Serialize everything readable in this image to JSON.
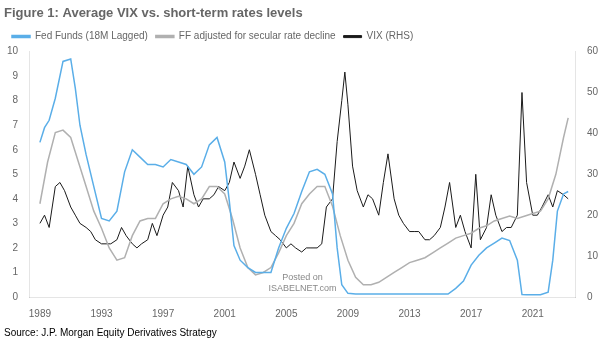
{
  "chart_data": {
    "type": "line",
    "title": "Figure 1: Average VIX vs. short-term rates levels",
    "subtitle": "Source: J.P. Morgan Equity Derivatives Strategy",
    "annotations": [
      "Posted on",
      "ISABELNET.com"
    ],
    "legend": "top",
    "grid": false,
    "xlim": [
      1988.3,
      2023.8
    ],
    "xticks": [
      1989,
      1993,
      1997,
      2001,
      2005,
      2009,
      2013,
      2017,
      2021
    ],
    "ylim": [
      0,
      10
    ],
    "yticks": [
      0,
      1,
      2,
      3,
      4,
      5,
      6,
      7,
      8,
      9,
      10
    ],
    "y2lim": [
      0,
      60
    ],
    "y2ticks": [
      0,
      10,
      20,
      30,
      40,
      50,
      60
    ],
    "series": [
      {
        "name": "Fed Funds (18M Lagged)",
        "color": "#5aaee8",
        "x": [
          1989.0,
          1989.3,
          1989.6,
          1990.0,
          1990.5,
          1991.0,
          1991.3,
          1991.6,
          1992.0,
          1992.5,
          1993.0,
          1993.5,
          1994.0,
          1994.5,
          1995.0,
          1995.5,
          1996.0,
          1996.5,
          1997.0,
          1997.5,
          1998.0,
          1998.5,
          1999.0,
          1999.5,
          2000.0,
          2000.5,
          2001.0,
          2001.3,
          2001.6,
          2002.0,
          2002.5,
          2003.0,
          2003.5,
          2004.0,
          2004.5,
          2005.0,
          2005.5,
          2006.0,
          2006.5,
          2007.0,
          2007.5,
          2008.0,
          2008.3,
          2008.6,
          2009.0,
          2009.5,
          2010.0,
          2010.5,
          2011.0,
          2011.5,
          2012.0,
          2012.5,
          2013.0,
          2013.5,
          2014.0,
          2014.5,
          2015.0,
          2015.5,
          2016.0,
          2016.5,
          2017.0,
          2017.5,
          2018.0,
          2018.5,
          2019.0,
          2019.5,
          2020.0,
          2020.3,
          2020.6,
          2021.0,
          2021.5,
          2022.0,
          2022.3,
          2022.6,
          2023.0,
          2023.3
        ],
        "values": [
          6.3,
          6.9,
          7.2,
          8.1,
          9.6,
          9.7,
          8.5,
          7.0,
          5.8,
          4.5,
          3.2,
          3.1,
          3.5,
          5.1,
          6.0,
          5.7,
          5.4,
          5.4,
          5.3,
          5.6,
          5.5,
          5.4,
          5.0,
          5.3,
          6.2,
          6.5,
          5.5,
          3.9,
          2.1,
          1.5,
          1.2,
          1.0,
          1.0,
          1.0,
          2.0,
          2.8,
          3.4,
          4.3,
          5.1,
          5.2,
          5.0,
          4.2,
          2.0,
          0.5,
          0.15,
          0.12,
          0.12,
          0.12,
          0.12,
          0.12,
          0.12,
          0.12,
          0.12,
          0.12,
          0.12,
          0.12,
          0.12,
          0.12,
          0.35,
          0.65,
          1.3,
          1.7,
          2.0,
          2.2,
          2.4,
          2.3,
          1.5,
          0.1,
          0.09,
          0.09,
          0.09,
          0.2,
          1.5,
          3.5,
          4.2,
          4.3
        ]
      },
      {
        "name": "FF adjusted for secular rate decline",
        "color": "#b0b0b0",
        "x": [
          1989.0,
          1989.5,
          1990.0,
          1990.5,
          1991.0,
          1991.5,
          1992.0,
          1992.5,
          1993.0,
          1993.5,
          1994.0,
          1994.5,
          1995.0,
          1995.5,
          1996.0,
          1996.5,
          1997.0,
          1997.5,
          1998.0,
          1998.5,
          1999.0,
          1999.5,
          2000.0,
          2000.5,
          2001.0,
          2001.5,
          2002.0,
          2002.5,
          2003.0,
          2003.5,
          2004.0,
          2004.5,
          2005.0,
          2005.5,
          2006.0,
          2006.5,
          2007.0,
          2007.5,
          2008.0,
          2008.5,
          2009.0,
          2009.5,
          2010.0,
          2010.5,
          2011.0,
          2011.5,
          2012.0,
          2012.5,
          2013.0,
          2013.5,
          2014.0,
          2014.5,
          2015.0,
          2015.5,
          2016.0,
          2016.5,
          2017.0,
          2017.5,
          2018.0,
          2018.5,
          2019.0,
          2019.5,
          2020.0,
          2020.5,
          2021.0,
          2021.5,
          2022.0,
          2022.5,
          2023.0,
          2023.3
        ],
        "values": [
          3.8,
          5.5,
          6.7,
          6.8,
          6.5,
          5.5,
          4.5,
          3.5,
          2.8,
          2.0,
          1.5,
          1.6,
          2.5,
          3.1,
          3.2,
          3.2,
          3.8,
          4.0,
          4.1,
          4.0,
          3.8,
          4.0,
          4.5,
          4.5,
          4.2,
          3.2,
          2.0,
          1.2,
          0.9,
          1.0,
          1.2,
          1.8,
          2.5,
          3.0,
          3.8,
          4.2,
          4.5,
          4.5,
          3.7,
          2.5,
          1.5,
          0.8,
          0.5,
          0.5,
          0.6,
          0.8,
          1.0,
          1.2,
          1.4,
          1.5,
          1.6,
          1.8,
          2.0,
          2.2,
          2.4,
          2.5,
          2.6,
          2.8,
          2.9,
          3.1,
          3.2,
          3.3,
          3.2,
          3.3,
          3.4,
          3.5,
          4.0,
          5.0,
          6.5,
          7.3
        ]
      },
      {
        "name": "VIX (RHS)",
        "color": "#1a1a1a",
        "axis": "y2",
        "x": [
          1989.0,
          1989.3,
          1989.6,
          1990.0,
          1990.3,
          1990.6,
          1991.0,
          1991.3,
          1991.6,
          1992.0,
          1992.3,
          1992.6,
          1993.0,
          1993.3,
          1993.6,
          1994.0,
          1994.3,
          1994.6,
          1995.0,
          1995.3,
          1995.6,
          1996.0,
          1996.3,
          1996.6,
          1997.0,
          1997.3,
          1997.6,
          1998.0,
          1998.3,
          1998.6,
          1999.0,
          1999.3,
          1999.6,
          2000.0,
          2000.3,
          2000.6,
          2001.0,
          2001.3,
          2001.6,
          2002.0,
          2002.3,
          2002.6,
          2003.0,
          2003.3,
          2003.6,
          2004.0,
          2004.3,
          2004.6,
          2005.0,
          2005.3,
          2005.6,
          2006.0,
          2006.3,
          2006.6,
          2007.0,
          2007.3,
          2007.6,
          2008.0,
          2008.3,
          2008.6,
          2008.8,
          2009.0,
          2009.3,
          2009.6,
          2010.0,
          2010.3,
          2010.6,
          2011.0,
          2011.3,
          2011.6,
          2012.0,
          2012.3,
          2012.6,
          2013.0,
          2013.3,
          2013.6,
          2014.0,
          2014.3,
          2014.6,
          2015.0,
          2015.3,
          2015.6,
          2016.0,
          2016.3,
          2016.6,
          2017.0,
          2017.3,
          2017.6,
          2018.0,
          2018.3,
          2018.6,
          2019.0,
          2019.3,
          2019.6,
          2020.0,
          2020.3,
          2020.6,
          2021.0,
          2021.3,
          2021.6,
          2022.0,
          2022.3,
          2022.6,
          2023.0,
          2023.3
        ],
        "values": [
          18,
          20,
          17,
          27,
          28,
          26,
          22,
          20,
          18,
          17,
          16,
          14,
          13,
          13,
          13,
          14,
          17,
          15,
          13,
          12,
          13,
          14,
          18,
          15,
          20,
          22,
          28,
          26,
          22,
          32,
          25,
          22,
          24,
          24,
          25,
          27,
          26,
          28,
          33,
          29,
          32,
          36,
          30,
          25,
          20,
          16,
          15,
          14,
          12,
          13,
          12,
          11,
          12,
          12,
          12,
          13,
          22,
          24,
          38,
          48,
          55,
          47,
          32,
          26,
          22,
          25,
          24,
          20,
          28,
          35,
          24,
          20,
          18,
          16,
          16,
          16,
          14,
          14,
          15,
          17,
          22,
          28,
          17,
          20,
          16,
          12,
          30,
          14,
          17,
          25,
          20,
          16,
          17,
          17,
          20,
          50,
          28,
          20,
          20,
          22,
          25,
          22,
          26,
          25,
          24
        ]
      }
    ]
  }
}
